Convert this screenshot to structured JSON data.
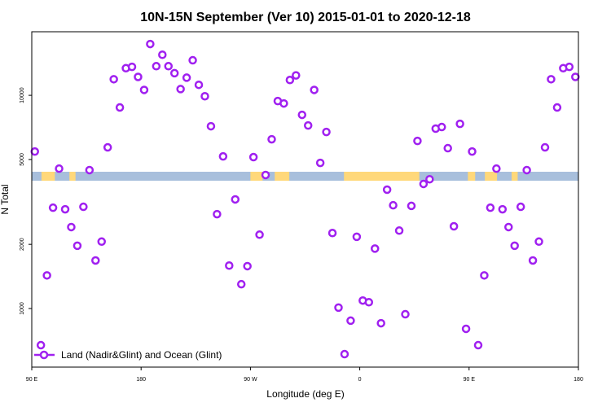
{
  "chart_data": {
    "type": "scatter",
    "title": "10N-15N September (Ver 10)   2015-01-01 to 2020-12-18",
    "xlabel": "Longitude (deg E)",
    "ylabel": "N Total",
    "xlim": [
      90,
      540
    ],
    "ylim": [
      531,
      19870
    ],
    "yscale": "log",
    "x_ticks": [
      {
        "value": 90,
        "label": "90 E"
      },
      {
        "value": 180,
        "label": "180"
      },
      {
        "value": 270,
        "label": "90 W"
      },
      {
        "value": 360,
        "label": "0"
      },
      {
        "value": 450,
        "label": "90 E"
      },
      {
        "value": 540,
        "label": "180"
      }
    ],
    "y_ticks": [
      {
        "value": 1000,
        "label": "1000"
      },
      {
        "value": 2000,
        "label": "2000"
      },
      {
        "value": 5000,
        "label": "5000"
      },
      {
        "value": 10000,
        "label": "10000"
      }
    ],
    "legend": {
      "label": "Land (Nadir&Glint) and Ocean (Glint)",
      "position": "bottom-left"
    },
    "series_color": "#a020f0",
    "x_start": 92.5,
    "x_step": 5,
    "values": [
      5450,
      673,
      1430,
      2970,
      4530,
      2920,
      2410,
      1970,
      3000,
      4460,
      1680,
      2060,
      5700,
      11900,
      8770,
      13400,
      13600,
      12200,
      10600,
      17400,
      13700,
      15500,
      13700,
      12700,
      10700,
      12100,
      14600,
      11200,
      9900,
      7160,
      2770,
      5170,
      1590,
      3250,
      1300,
      1580,
      5130,
      2220,
      4230,
      6220,
      9400,
      9160,
      11800,
      12400,
      8100,
      7220,
      10600,
      4820,
      6730,
      2260,
      1010,
      611,
      877,
      2170,
      1090,
      1070,
      1910,
      853,
      3610,
      3050,
      2320,
      940,
      3030,
      6110,
      3840,
      4040,
      6980,
      7100,
      5650,
      2430,
      7350,
      803,
      5450,
      673,
      1430,
      2970,
      4530,
      2920,
      2410,
      1970,
      3000,
      4460,
      1680,
      2060,
      5700,
      11900,
      8770,
      13400,
      13600,
      12200
    ],
    "surface_bar": {
      "ocean_color": "#a8bfdc",
      "land_color": "#ffd87a",
      "land_segments": [
        [
          98,
          109
        ],
        [
          121,
          126
        ],
        [
          270,
          280
        ],
        [
          290,
          302
        ],
        [
          347,
          409
        ],
        [
          449,
          455
        ],
        [
          463,
          473
        ],
        [
          485,
          490
        ]
      ]
    }
  }
}
